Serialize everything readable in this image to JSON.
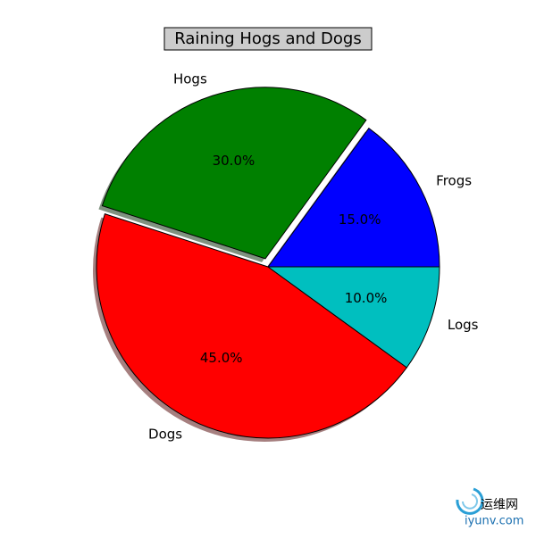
{
  "chart_data": {
    "type": "pie",
    "title": "Raining Hogs and Dogs",
    "categories": [
      "Frogs",
      "Hogs",
      "Dogs",
      "Logs"
    ],
    "values": [
      15,
      30,
      45,
      10
    ],
    "value_labels": [
      "15.0%",
      "30.0%",
      "45.0%",
      "10.0%"
    ],
    "colors": [
      "#0000ff",
      "#008000",
      "#ff0000",
      "#00bfbf"
    ],
    "explode": [
      0,
      0.05,
      0,
      0
    ],
    "shadow": true,
    "annotations": [
      "运维网",
      "iyunv.com"
    ]
  }
}
